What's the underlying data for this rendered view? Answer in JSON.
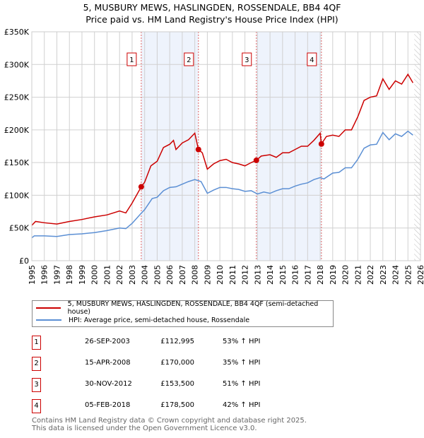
{
  "chart_data": {
    "type": "line",
    "title": "5, MUSBURY MEWS, HASLINGDEN, ROSSENDALE, BB4 4QF",
    "subtitle": "Price paid vs. HM Land Registry's House Price Index (HPI)",
    "xlim": [
      1995,
      2026
    ],
    "ylim": [
      0,
      350000
    ],
    "yticks": [
      {
        "v": 0,
        "l": "£0"
      },
      {
        "v": 50000,
        "l": "£50K"
      },
      {
        "v": 100000,
        "l": "£100K"
      },
      {
        "v": 150000,
        "l": "£150K"
      },
      {
        "v": 200000,
        "l": "£200K"
      },
      {
        "v": 250000,
        "l": "£250K"
      },
      {
        "v": 300000,
        "l": "£300K"
      },
      {
        "v": 350000,
        "l": "£350K"
      }
    ],
    "xticks": [
      "1995",
      "1996",
      "1997",
      "1998",
      "1999",
      "2000",
      "2001",
      "2002",
      "2003",
      "2004",
      "2005",
      "2006",
      "2007",
      "2008",
      "2009",
      "2010",
      "2011",
      "2012",
      "2013",
      "2014",
      "2015",
      "2016",
      "2017",
      "2018",
      "2019",
      "2020",
      "2021",
      "2022",
      "2023",
      "2024",
      "2025",
      "2026"
    ],
    "series": [
      {
        "name": "5, MUSBURY MEWS, HASLINGDEN, ROSSENDALE, BB4 4QF (semi-detached house)",
        "color": "#cc0000",
        "x": [
          1995,
          1995.3,
          1996,
          1997,
          1998,
          1999,
          2000,
          2001,
          2002,
          2002.5,
          2003,
          2003.73,
          2004,
          2004.5,
          2005,
          2005.5,
          2006,
          2006.3,
          2006.5,
          2007,
          2007.5,
          2008,
          2008.29,
          2008.6,
          2009,
          2009.5,
          2010,
          2010.5,
          2011,
          2011.5,
          2012,
          2012.5,
          2012.91,
          2013.3,
          2014,
          2014.5,
          2015,
          2015.5,
          2016,
          2016.5,
          2017,
          2017.5,
          2018,
          2018.1,
          2018.5,
          2019,
          2019.5,
          2020,
          2020.5,
          2021,
          2021.5,
          2022,
          2022.5,
          2023,
          2023.5,
          2024,
          2024.5,
          2025,
          2025.4
        ],
        "y": [
          54000,
          60000,
          58000,
          56000,
          60000,
          63000,
          67000,
          70000,
          76000,
          73000,
          88000,
          112995,
          120000,
          145000,
          152000,
          173000,
          178000,
          184000,
          170000,
          180000,
          185000,
          195000,
          170000,
          165000,
          140000,
          148000,
          153000,
          155000,
          150000,
          148000,
          145000,
          150000,
          153500,
          160000,
          162000,
          158000,
          165000,
          165000,
          170000,
          175000,
          175000,
          184000,
          195000,
          178500,
          190000,
          192000,
          190000,
          200000,
          200000,
          220000,
          245000,
          250000,
          252000,
          278000,
          262000,
          275000,
          270000,
          285000,
          272000
        ]
      },
      {
        "name": "HPI: Average price, semi-detached house, Rossendale",
        "color": "#5b8fd4",
        "x": [
          1995,
          1995.2,
          1996,
          1997,
          1998,
          1999,
          2000,
          2001,
          2002,
          2002.5,
          2003,
          2003.7,
          2004,
          2004.6,
          2005,
          2005.5,
          2006,
          2006.5,
          2007,
          2007.5,
          2008,
          2008.5,
          2009,
          2009.5,
          2010,
          2010.5,
          2011,
          2011.5,
          2012,
          2012.5,
          2013,
          2013.5,
          2014,
          2014.5,
          2015,
          2015.5,
          2016,
          2016.5,
          2017,
          2017.5,
          2018,
          2018.3,
          2019,
          2019.5,
          2020,
          2020.5,
          2021,
          2021.5,
          2022,
          2022.5,
          2023,
          2023.5,
          2024,
          2024.5,
          2025,
          2025.4
        ],
        "y": [
          35000,
          38000,
          38000,
          37000,
          40000,
          41000,
          43000,
          46000,
          50000,
          49000,
          57000,
          72000,
          78000,
          95000,
          97000,
          107000,
          112000,
          113000,
          117000,
          121000,
          124000,
          121000,
          103000,
          108000,
          112000,
          112000,
          110000,
          109000,
          106000,
          107000,
          102000,
          105000,
          103000,
          107000,
          110000,
          110000,
          114000,
          117000,
          119000,
          124000,
          127000,
          125000,
          134000,
          135000,
          142000,
          142000,
          155000,
          172000,
          177000,
          178000,
          196000,
          185000,
          194000,
          190000,
          198000,
          192000
        ]
      }
    ],
    "sales": [
      {
        "n": "1",
        "x": 2003.73,
        "date": "26-SEP-2003",
        "price": 112995,
        "price_label": "£112,995",
        "hpi": "53% ↑ HPI"
      },
      {
        "n": "2",
        "x": 2008.29,
        "date": "15-APR-2008",
        "price": 170000,
        "price_label": "£170,000",
        "hpi": "35% ↑ HPI"
      },
      {
        "n": "3",
        "x": 2012.91,
        "date": "30-NOV-2012",
        "price": 153500,
        "price_label": "£153,500",
        "hpi": "51% ↑ HPI"
      },
      {
        "n": "4",
        "x": 2018.1,
        "date": "05-FEB-2018",
        "price": 178500,
        "price_label": "£178,500",
        "hpi": "42% ↑ HPI"
      }
    ],
    "legend_position": "below"
  },
  "footer": {
    "line1": "Contains HM Land Registry data © Crown copyright and database right 2025.",
    "line2": "This data is licensed under the Open Government Licence v3.0."
  }
}
